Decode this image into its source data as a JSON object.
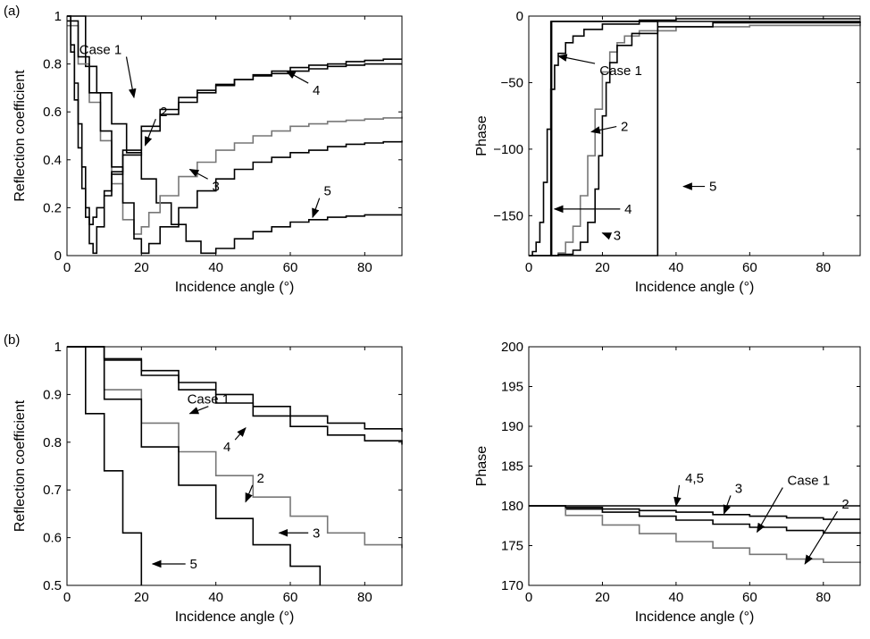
{
  "panel_labels": [
    "(a)",
    "(b)"
  ],
  "chart_data": [
    {
      "type": "line",
      "panel": "(a)",
      "xlabel": "Incidence angle (°)",
      "ylabel": "Reflection coefficient",
      "xlim": [
        0,
        90
      ],
      "ylim": [
        0,
        1
      ],
      "xticks": [
        0,
        20,
        40,
        60,
        80
      ],
      "yticks": [
        0,
        0.2,
        0.4,
        0.6,
        0.8,
        1
      ],
      "ytick_labels": [
        "0",
        "0.2",
        "0.4",
        "0.6",
        "0.8",
        "1"
      ],
      "grid": false,
      "series": [
        {
          "name": "Case 1",
          "color": "#000000",
          "x": [
            0,
            5,
            8,
            12,
            16,
            20,
            24,
            28,
            32,
            36,
            40,
            45,
            50,
            55,
            60,
            65,
            70,
            75,
            80,
            85,
            90
          ],
          "y": [
            1,
            0.79,
            0.68,
            0.55,
            0.43,
            0.32,
            0.22,
            0.13,
            0.06,
            0.01,
            0.03,
            0.07,
            0.1,
            0.12,
            0.14,
            0.15,
            0.16,
            0.165,
            0.17,
            0.17,
            0.17
          ]
        },
        {
          "name": "2",
          "color": "#777777",
          "x": [
            0,
            3,
            6,
            9,
            12,
            15,
            18,
            20,
            22,
            25,
            30,
            35,
            40,
            45,
            50,
            55,
            60,
            65,
            70,
            75,
            80,
            85,
            90
          ],
          "y": [
            0.96,
            0.8,
            0.64,
            0.48,
            0.3,
            0.15,
            0.09,
            0.12,
            0.18,
            0.25,
            0.33,
            0.39,
            0.44,
            0.47,
            0.5,
            0.52,
            0.54,
            0.55,
            0.56,
            0.565,
            0.57,
            0.575,
            0.58
          ]
        },
        {
          "name": "3",
          "color": "#000000",
          "x": [
            0,
            3,
            6,
            9,
            12,
            15,
            18,
            20,
            22,
            25,
            30,
            35,
            40,
            45,
            50,
            55,
            60,
            65,
            70,
            75,
            80,
            85,
            90
          ],
          "y": [
            0.98,
            0.83,
            0.68,
            0.52,
            0.37,
            0.22,
            0.07,
            0.01,
            0.05,
            0.12,
            0.2,
            0.27,
            0.32,
            0.36,
            0.39,
            0.41,
            0.43,
            0.44,
            0.455,
            0.465,
            0.47,
            0.475,
            0.48
          ]
        },
        {
          "name": "4",
          "color": "#000000",
          "x": [
            0,
            1,
            2,
            3,
            4,
            5,
            6,
            7,
            8,
            10,
            12,
            15,
            20,
            25,
            30,
            35,
            40,
            45,
            50,
            55,
            60,
            65,
            70,
            75,
            80,
            85,
            90
          ],
          "y": [
            1,
            0.88,
            0.72,
            0.55,
            0.37,
            0.2,
            0.05,
            0.01,
            0.12,
            0.25,
            0.35,
            0.44,
            0.54,
            0.61,
            0.66,
            0.69,
            0.715,
            0.735,
            0.75,
            0.76,
            0.77,
            0.78,
            0.79,
            0.795,
            0.8,
            0.8,
            0.8
          ]
        },
        {
          "name": "5",
          "color": "#000000",
          "x": [
            0,
            1,
            2,
            3,
            4,
            5,
            6,
            7,
            8,
            10,
            12,
            15,
            20,
            25,
            30,
            35,
            40,
            45,
            50,
            55,
            60,
            65,
            70,
            75,
            80,
            85,
            90
          ],
          "y": [
            1,
            0.85,
            0.65,
            0.45,
            0.28,
            0.16,
            0.13,
            0.16,
            0.2,
            0.27,
            0.34,
            0.42,
            0.52,
            0.59,
            0.64,
            0.68,
            0.71,
            0.735,
            0.755,
            0.77,
            0.785,
            0.795,
            0.8,
            0.81,
            0.815,
            0.82,
            0.82
          ]
        }
      ],
      "annotations": [
        {
          "text": "Case 1",
          "x": 9,
          "y": 0.86,
          "arrow_to": [
            18,
            0.66
          ]
        },
        {
          "text": "2",
          "x": 26,
          "y": 0.6,
          "arrow_to": [
            21,
            0.46
          ]
        },
        {
          "text": "3",
          "x": 40,
          "y": 0.29,
          "arrow_to": [
            33,
            0.36
          ]
        },
        {
          "text": "4",
          "x": 67,
          "y": 0.69,
          "arrow_to": [
            59,
            0.77
          ]
        },
        {
          "text": "5",
          "x": 70,
          "y": 0.27,
          "arrow_to": [
            66,
            0.16
          ]
        }
      ]
    },
    {
      "type": "line",
      "panel": "(a)",
      "xlabel": "Incidence angle (°)",
      "ylabel": "Phase",
      "xlim": [
        0,
        90
      ],
      "ylim": [
        -180,
        0
      ],
      "xticks": [
        0,
        20,
        40,
        60,
        80
      ],
      "yticks": [
        -150,
        -100,
        -50,
        0
      ],
      "ytick_labels": [
        "−150",
        "−100",
        "−50",
        "0"
      ],
      "grid": false,
      "series": [
        {
          "name": "Case 1",
          "color": "#000000",
          "x": [
            0,
            6,
            6.2,
            20,
            20.2,
            90
          ],
          "y": [
            -180,
            -180,
            -4,
            -4,
            -4,
            -4
          ]
        },
        {
          "name": "2",
          "color": "#777777",
          "x": [
            0,
            8,
            10,
            12,
            14,
            16,
            18,
            20,
            22,
            24,
            26,
            30,
            40,
            60,
            90
          ],
          "y": [
            -180,
            -178,
            -170,
            -158,
            -135,
            -105,
            -70,
            -42,
            -27,
            -20,
            -15,
            -11,
            -8,
            -7,
            -6
          ]
        },
        {
          "name": "3",
          "color": "#000000",
          "x": [
            0,
            8,
            12,
            14,
            16,
            18,
            19,
            20,
            21,
            22,
            24,
            28,
            35,
            50,
            90
          ],
          "y": [
            -180,
            -179,
            -176,
            -170,
            -155,
            -130,
            -105,
            -75,
            -50,
            -35,
            -22,
            -13,
            -8,
            -5,
            -4
          ]
        },
        {
          "name": "4",
          "color": "#000000",
          "x": [
            0,
            1,
            2,
            3,
            4,
            5,
            6,
            7,
            8,
            10,
            12,
            15,
            20,
            30,
            40,
            60,
            90
          ],
          "y": [
            -180,
            -177,
            -170,
            -155,
            -125,
            -85,
            -55,
            -37,
            -28,
            -20,
            -15,
            -10,
            -6,
            -3,
            -2,
            -2,
            -2
          ]
        },
        {
          "name": "5",
          "color": "#000000",
          "x": [
            6,
            6,
            35,
            35,
            6
          ],
          "y": [
            -180,
            -4,
            -4,
            -180,
            -180
          ]
        }
      ],
      "annotations": [
        {
          "text": "Case 1",
          "x": 25,
          "y": -41,
          "arrow_to": [
            8,
            -30
          ]
        },
        {
          "text": "2",
          "x": 26,
          "y": -83,
          "arrow_to": [
            17,
            -87
          ]
        },
        {
          "text": "3",
          "x": 24,
          "y": -165,
          "arrow_to": [
            20,
            -163
          ]
        },
        {
          "text": "4",
          "x": 27,
          "y": -145,
          "arrow_to": [
            7,
            -145
          ]
        },
        {
          "text": "5",
          "x": 50,
          "y": -128,
          "arrow_to": [
            42,
            -128
          ]
        }
      ]
    },
    {
      "type": "line",
      "panel": "(b)",
      "xlabel": "Incidence angle (°)",
      "ylabel": "Reflection coefficient",
      "xlim": [
        0,
        90
      ],
      "ylim": [
        0.5,
        1
      ],
      "xticks": [
        0,
        20,
        40,
        60,
        80
      ],
      "yticks": [
        0.5,
        0.6,
        0.7,
        0.8,
        0.9,
        1
      ],
      "ytick_labels": [
        "0.5",
        "0.6",
        "0.7",
        "0.8",
        "0.9",
        "1"
      ],
      "grid": false,
      "series": [
        {
          "name": "Case 1",
          "color": "#000000",
          "x": [
            0,
            10,
            20,
            30,
            40,
            50,
            60,
            70,
            80,
            90
          ],
          "y": [
            1,
            0.975,
            0.95,
            0.925,
            0.9,
            0.875,
            0.855,
            0.84,
            0.828,
            0.822
          ]
        },
        {
          "name": "2",
          "color": "#777777",
          "x": [
            0,
            10,
            20,
            30,
            40,
            50,
            60,
            70,
            80,
            90
          ],
          "y": [
            1,
            0.91,
            0.84,
            0.78,
            0.73,
            0.685,
            0.645,
            0.61,
            0.585,
            0.578
          ]
        },
        {
          "name": "3",
          "color": "#000000",
          "x": [
            0,
            10,
            20,
            30,
            40,
            50,
            60,
            68
          ],
          "y": [
            1,
            0.89,
            0.79,
            0.71,
            0.64,
            0.585,
            0.54,
            0.5
          ]
        },
        {
          "name": "4",
          "color": "#000000",
          "x": [
            0,
            10,
            20,
            30,
            40,
            50,
            60,
            70,
            80,
            90
          ],
          "y": [
            1,
            0.972,
            0.94,
            0.91,
            0.882,
            0.855,
            0.833,
            0.815,
            0.803,
            0.795
          ]
        },
        {
          "name": "5",
          "color": "#000000",
          "x": [
            0,
            5,
            10,
            15,
            20
          ],
          "y": [
            1,
            0.86,
            0.74,
            0.61,
            0.5
          ]
        }
      ],
      "annotations": [
        {
          "text": "Case 1",
          "x": 38,
          "y": 0.89,
          "arrow_to": [
            33,
            0.86
          ]
        },
        {
          "text": "4",
          "x": 43,
          "y": 0.79,
          "arrow_to": [
            48,
            0.83
          ]
        },
        {
          "text": "2",
          "x": 52,
          "y": 0.725,
          "arrow_to": [
            48,
            0.675
          ]
        },
        {
          "text": "3",
          "x": 67,
          "y": 0.61,
          "arrow_to": [
            57,
            0.61
          ]
        },
        {
          "text": "5",
          "x": 34,
          "y": 0.545,
          "arrow_to": [
            23,
            0.545
          ]
        }
      ]
    },
    {
      "type": "line",
      "panel": "(b)",
      "xlabel": "Incidence angle (°)",
      "ylabel": "Phase",
      "xlim": [
        0,
        90
      ],
      "ylim": [
        170,
        200
      ],
      "xticks": [
        0,
        20,
        40,
        60,
        80
      ],
      "yticks": [
        170,
        175,
        180,
        185,
        190,
        195,
        200
      ],
      "ytick_labels": [
        "170",
        "175",
        "180",
        "185",
        "190",
        "195",
        "200"
      ],
      "grid": false,
      "series": [
        {
          "name": "Case 1",
          "color": "#000000",
          "x": [
            0,
            10,
            20,
            30,
            40,
            50,
            60,
            70,
            80,
            90
          ],
          "y": [
            180,
            179.6,
            179.2,
            178.7,
            178.2,
            177.7,
            177.3,
            176.9,
            176.6,
            176.5
          ]
        },
        {
          "name": "2",
          "color": "#777777",
          "x": [
            0,
            10,
            20,
            30,
            40,
            50,
            60,
            70,
            80,
            90
          ],
          "y": [
            180,
            178.8,
            177.6,
            176.5,
            175.5,
            174.7,
            173.9,
            173.3,
            172.9,
            172.8
          ]
        },
        {
          "name": "3",
          "color": "#000000",
          "x": [
            0,
            10,
            20,
            30,
            40,
            50,
            60,
            70,
            80,
            90
          ],
          "y": [
            180,
            179.8,
            179.6,
            179.4,
            179.2,
            178.9,
            178.7,
            178.5,
            178.3,
            178.3
          ]
        },
        {
          "name": "4,5",
          "color": "#000000",
          "x": [
            0,
            90
          ],
          "y": [
            180,
            180
          ]
        }
      ],
      "annotations": [
        {
          "text": "4,5",
          "x": 45,
          "y": 183.5,
          "arrow_to": [
            40,
            180
          ]
        },
        {
          "text": "3",
          "x": 57,
          "y": 182.2,
          "arrow_to": [
            53,
            179
          ]
        },
        {
          "text": "Case 1",
          "x": 76,
          "y": 183.2,
          "arrow_to": [
            62,
            176.7
          ]
        },
        {
          "text": "2",
          "x": 86,
          "y": 180.2,
          "arrow_to": [
            75,
            172.7
          ]
        }
      ]
    }
  ]
}
